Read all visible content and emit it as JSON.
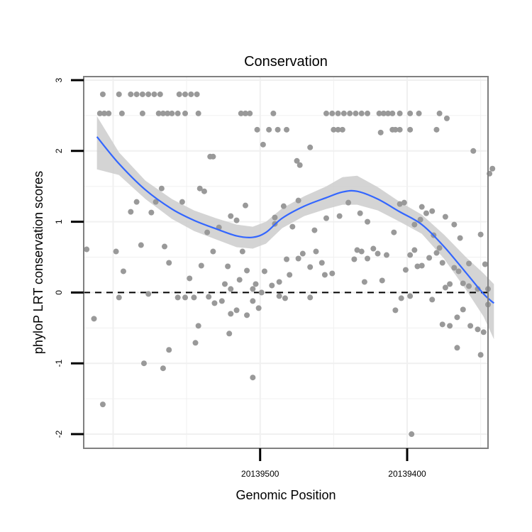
{
  "chart_data": {
    "type": "scatter",
    "title": "Conservation",
    "xlabel": "Genomic Position",
    "ylabel": "phyloP LRT conservation scores",
    "xlim": [
      20139620,
      20139345
    ],
    "ylim": [
      -2.2,
      3.05
    ],
    "x_reversed": true,
    "x_ticks": [
      {
        "value": 20139500,
        "label": "20139500"
      },
      {
        "value": 20139400,
        "label": "20139400"
      }
    ],
    "y_ticks": [
      {
        "value": 3,
        "label": "3"
      },
      {
        "value": 2,
        "label": "2"
      },
      {
        "value": 1,
        "label": "1"
      },
      {
        "value": 0,
        "label": "0"
      },
      {
        "value": -1,
        "label": "-1"
      },
      {
        "value": -2,
        "label": "-2"
      }
    ],
    "grid": true,
    "reference_line": {
      "y": 0,
      "style": "dashed"
    },
    "colors": {
      "points": "#999999",
      "smooth": "#3366ff",
      "band": "#cccccc",
      "panel_border": "#808080",
      "grid": "#f0f0f0"
    },
    "series": [
      {
        "name": "scores",
        "points": [
          [
            20139607,
            2.8
          ],
          [
            20139596,
            2.8
          ],
          [
            20139588,
            2.8
          ],
          [
            20139584,
            2.8
          ],
          [
            20139580,
            2.8
          ],
          [
            20139576,
            2.8
          ],
          [
            20139572,
            2.8
          ],
          [
            20139568,
            2.8
          ],
          [
            20139555,
            2.8
          ],
          [
            20139551,
            2.8
          ],
          [
            20139547,
            2.8
          ],
          [
            20139543,
            2.8
          ],
          [
            20139609,
            2.53
          ],
          [
            20139606,
            2.53
          ],
          [
            20139603,
            2.53
          ],
          [
            20139594,
            2.53
          ],
          [
            20139580,
            2.53
          ],
          [
            20139569,
            2.53
          ],
          [
            20139566,
            2.53
          ],
          [
            20139563,
            2.53
          ],
          [
            20139560,
            2.53
          ],
          [
            20139556,
            2.53
          ],
          [
            20139551,
            2.53
          ],
          [
            20139542,
            2.53
          ],
          [
            20139513,
            2.53
          ],
          [
            20139510,
            2.53
          ],
          [
            20139507,
            2.53
          ],
          [
            20139491,
            2.53
          ],
          [
            20139455,
            2.53
          ],
          [
            20139451,
            2.53
          ],
          [
            20139447,
            2.53
          ],
          [
            20139443,
            2.53
          ],
          [
            20139439,
            2.53
          ],
          [
            20139435,
            2.53
          ],
          [
            20139431,
            2.53
          ],
          [
            20139427,
            2.53
          ],
          [
            20139419,
            2.53
          ],
          [
            20139416,
            2.53
          ],
          [
            20139413,
            2.53
          ],
          [
            20139410,
            2.53
          ],
          [
            20139405,
            2.53
          ],
          [
            20139398,
            2.53
          ],
          [
            20139392,
            2.53
          ],
          [
            20139378,
            2.53
          ],
          [
            20139502,
            2.3
          ],
          [
            20139494,
            2.3
          ],
          [
            20139488,
            2.3
          ],
          [
            20139482,
            2.3
          ],
          [
            20139450,
            2.3
          ],
          [
            20139447,
            2.3
          ],
          [
            20139444,
            2.3
          ],
          [
            20139410,
            2.3
          ],
          [
            20139408,
            2.3
          ],
          [
            20139405,
            2.3
          ],
          [
            20139398,
            2.3
          ],
          [
            20139380,
            2.3
          ],
          [
            20139418,
            2.26
          ],
          [
            20139373,
            2.46
          ],
          [
            20139355,
            2.0
          ],
          [
            20139498,
            2.09
          ],
          [
            20139475,
            1.86
          ],
          [
            20139473,
            1.8
          ],
          [
            20139466,
            2.05
          ],
          [
            20139534,
            1.92
          ],
          [
            20139532,
            1.92
          ],
          [
            20139342,
            1.75
          ],
          [
            20139344,
            1.68
          ],
          [
            20139541,
            1.47
          ],
          [
            20139538,
            1.43
          ],
          [
            20139567,
            1.47
          ],
          [
            20139584,
            1.28
          ],
          [
            20139571,
            1.28
          ],
          [
            20139588,
            1.14
          ],
          [
            20139574,
            1.13
          ],
          [
            20139553,
            1.28
          ],
          [
            20139520,
            1.08
          ],
          [
            20139516,
            1.02
          ],
          [
            20139510,
            1.23
          ],
          [
            20139484,
            1.22
          ],
          [
            20139474,
            1.3
          ],
          [
            20139490,
            1.06
          ],
          [
            20139463,
            0.88
          ],
          [
            20139455,
            1.05
          ],
          [
            20139446,
            1.08
          ],
          [
            20139440,
            1.27
          ],
          [
            20139432,
            1.12
          ],
          [
            20139427,
            1.0
          ],
          [
            20139405,
            1.25
          ],
          [
            20139402,
            1.27
          ],
          [
            20139390,
            1.21
          ],
          [
            20139387,
            1.12
          ],
          [
            20139383,
            1.15
          ],
          [
            20139368,
            0.96
          ],
          [
            20139581,
            0.67
          ],
          [
            20139565,
            0.65
          ],
          [
            20139536,
            0.85
          ],
          [
            20139528,
            0.92
          ],
          [
            20139512,
            0.58
          ],
          [
            20139490,
            0.97
          ],
          [
            20139478,
            0.93
          ],
          [
            20139409,
            0.85
          ],
          [
            20139395,
            0.96
          ],
          [
            20139391,
            1.03
          ],
          [
            20139382,
            0.81
          ],
          [
            20139378,
            0.63
          ],
          [
            20139374,
            1.07
          ],
          [
            20139364,
            0.77
          ],
          [
            20139350,
            0.82
          ],
          [
            20139358,
            0.41
          ],
          [
            20139618,
            0.61
          ],
          [
            20139598,
            0.58
          ],
          [
            20139593,
            0.3
          ],
          [
            20139562,
            0.42
          ],
          [
            20139548,
            0.2
          ],
          [
            20139540,
            0.38
          ],
          [
            20139532,
            0.58
          ],
          [
            20139522,
            0.37
          ],
          [
            20139524,
            0.12
          ],
          [
            20139520,
            0.05
          ],
          [
            20139514,
            0.18
          ],
          [
            20139509,
            0.31
          ],
          [
            20139505,
            0.05
          ],
          [
            20139503,
            0.12
          ],
          [
            20139499,
            0.0
          ],
          [
            20139497,
            0.3
          ],
          [
            20139492,
            0.1
          ],
          [
            20139487,
            0.15
          ],
          [
            20139482,
            0.47
          ],
          [
            20139480,
            0.25
          ],
          [
            20139474,
            0.48
          ],
          [
            20139471,
            0.55
          ],
          [
            20139466,
            0.36
          ],
          [
            20139462,
            0.58
          ],
          [
            20139458,
            0.42
          ],
          [
            20139456,
            0.25
          ],
          [
            20139451,
            0.27
          ],
          [
            20139436,
            0.47
          ],
          [
            20139434,
            0.6
          ],
          [
            20139431,
            0.58
          ],
          [
            20139429,
            0.15
          ],
          [
            20139427,
            0.48
          ],
          [
            20139423,
            0.62
          ],
          [
            20139420,
            0.55
          ],
          [
            20139417,
            0.17
          ],
          [
            20139414,
            0.53
          ],
          [
            20139401,
            0.32
          ],
          [
            20139398,
            0.53
          ],
          [
            20139395,
            0.6
          ],
          [
            20139393,
            0.37
          ],
          [
            20139390,
            0.38
          ],
          [
            20139385,
            0.49
          ],
          [
            20139380,
            0.56
          ],
          [
            20139376,
            0.42
          ],
          [
            20139374,
            0.07
          ],
          [
            20139371,
            0.12
          ],
          [
            20139368,
            0.35
          ],
          [
            20139365,
            0.3
          ],
          [
            20139362,
            0.13
          ],
          [
            20139358,
            0.09
          ],
          [
            20139352,
            0.05
          ],
          [
            20139347,
            0.4
          ],
          [
            20139345,
            0.05
          ],
          [
            20139613,
            -0.37
          ],
          [
            20139596,
            -0.07
          ],
          [
            20139576,
            -0.02
          ],
          [
            20139556,
            -0.07
          ],
          [
            20139551,
            -0.07
          ],
          [
            20139545,
            -0.07
          ],
          [
            20139535,
            -0.06
          ],
          [
            20139531,
            -0.15
          ],
          [
            20139526,
            -0.12
          ],
          [
            20139520,
            -0.3
          ],
          [
            20139516,
            -0.25
          ],
          [
            20139509,
            -0.32
          ],
          [
            20139505,
            -0.12
          ],
          [
            20139501,
            -0.22
          ],
          [
            20139487,
            -0.05
          ],
          [
            20139483,
            -0.08
          ],
          [
            20139466,
            -0.07
          ],
          [
            20139408,
            -0.25
          ],
          [
            20139404,
            -0.08
          ],
          [
            20139398,
            -0.05
          ],
          [
            20139383,
            -0.1
          ],
          [
            20139376,
            -0.45
          ],
          [
            20139371,
            -0.47
          ],
          [
            20139366,
            -0.35
          ],
          [
            20139362,
            -0.24
          ],
          [
            20139357,
            -0.47
          ],
          [
            20139352,
            -0.52
          ],
          [
            20139348,
            -0.56
          ],
          [
            20139345,
            -0.17
          ],
          [
            20139542,
            -0.47
          ],
          [
            20139544,
            -0.71
          ],
          [
            20139521,
            -0.58
          ],
          [
            20139579,
            -1.0
          ],
          [
            20139566,
            -1.07
          ],
          [
            20139562,
            -0.81
          ],
          [
            20139505,
            -1.2
          ],
          [
            20139366,
            -0.78
          ],
          [
            20139350,
            -0.88
          ],
          [
            20139607,
            -1.58
          ],
          [
            20139397,
            -2.0
          ]
        ]
      }
    ],
    "smooth": {
      "method": "loess",
      "curve": [
        [
          20139611,
          2.2
        ],
        [
          20139596,
          1.82
        ],
        [
          20139578,
          1.45
        ],
        [
          20139560,
          1.18
        ],
        [
          20139545,
          1.02
        ],
        [
          20139530,
          0.9
        ],
        [
          20139516,
          0.8
        ],
        [
          20139505,
          0.78
        ],
        [
          20139496,
          0.85
        ],
        [
          20139485,
          1.05
        ],
        [
          20139470,
          1.22
        ],
        [
          20139455,
          1.34
        ],
        [
          20139444,
          1.42
        ],
        [
          20139434,
          1.43
        ],
        [
          20139420,
          1.32
        ],
        [
          20139405,
          1.14
        ],
        [
          20139390,
          0.96
        ],
        [
          20139375,
          0.65
        ],
        [
          20139360,
          0.28
        ],
        [
          20139348,
          -0.02
        ],
        [
          20139341,
          -0.15
        ]
      ],
      "band_upper": [
        [
          20139611,
          2.49
        ],
        [
          20139596,
          1.98
        ],
        [
          20139578,
          1.58
        ],
        [
          20139560,
          1.32
        ],
        [
          20139545,
          1.16
        ],
        [
          20139530,
          1.05
        ],
        [
          20139516,
          0.96
        ],
        [
          20139505,
          0.93
        ],
        [
          20139496,
          1.0
        ],
        [
          20139485,
          1.19
        ],
        [
          20139470,
          1.36
        ],
        [
          20139455,
          1.5
        ],
        [
          20139444,
          1.63
        ],
        [
          20139434,
          1.65
        ],
        [
          20139420,
          1.49
        ],
        [
          20139405,
          1.28
        ],
        [
          20139390,
          1.1
        ],
        [
          20139375,
          0.82
        ],
        [
          20139360,
          0.5
        ],
        [
          20139348,
          0.27
        ],
        [
          20139341,
          0.12
        ]
      ],
      "band_lower": [
        [
          20139611,
          1.74
        ],
        [
          20139596,
          1.66
        ],
        [
          20139578,
          1.32
        ],
        [
          20139560,
          1.04
        ],
        [
          20139545,
          0.87
        ],
        [
          20139530,
          0.75
        ],
        [
          20139516,
          0.64
        ],
        [
          20139505,
          0.62
        ],
        [
          20139496,
          0.69
        ],
        [
          20139485,
          0.91
        ],
        [
          20139470,
          1.08
        ],
        [
          20139455,
          1.18
        ],
        [
          20139444,
          1.24
        ],
        [
          20139434,
          1.24
        ],
        [
          20139420,
          1.16
        ],
        [
          20139405,
          1.0
        ],
        [
          20139390,
          0.83
        ],
        [
          20139375,
          0.48
        ],
        [
          20139360,
          0.04
        ],
        [
          20139348,
          -0.34
        ],
        [
          20139341,
          -0.66
        ]
      ]
    }
  }
}
